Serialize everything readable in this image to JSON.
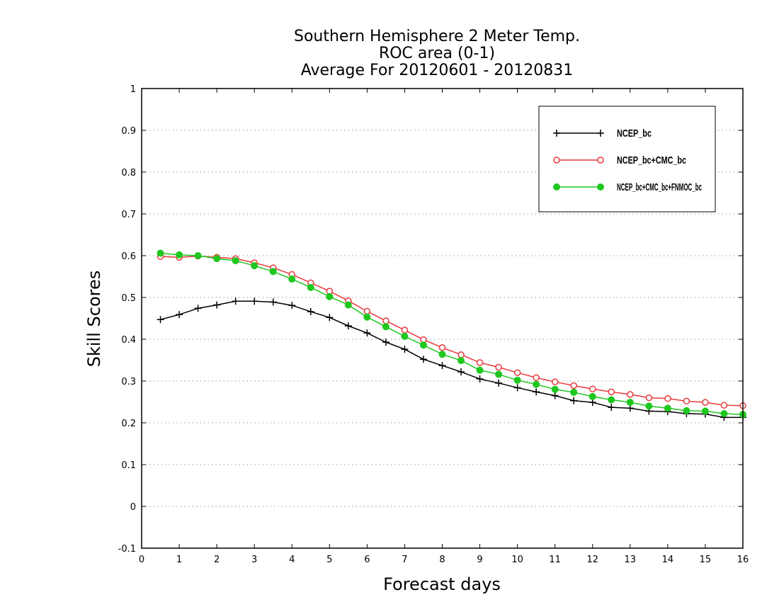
{
  "chart_data": {
    "type": "line",
    "title": [
      "Southern Hemisphere 2 Meter Temp.",
      "ROC area (0-1)",
      "Average For 20120601 - 20120831"
    ],
    "xlabel": "Forecast days",
    "ylabel": "Skill Scores",
    "xlim": [
      0,
      16
    ],
    "ylim": [
      -0.1,
      1
    ],
    "xticks": [
      "0",
      "1",
      "2",
      "3",
      "4",
      "5",
      "6",
      "7",
      "8",
      "9",
      "10",
      "11",
      "12",
      "13",
      "14",
      "15",
      "16"
    ],
    "yticks": [
      "-0.1",
      "0",
      "0.1",
      "0.2",
      "0.3",
      "0.4",
      "0.5",
      "0.6",
      "0.7",
      "0.8",
      "0.9",
      "1"
    ],
    "grid": "horizontal dotted",
    "legend_position": "top-right",
    "x": [
      0.5,
      1,
      1.5,
      2,
      2.5,
      3,
      3.5,
      4,
      4.5,
      5,
      5.5,
      6,
      6.5,
      7,
      7.5,
      8,
      8.5,
      9,
      9.5,
      10,
      10.5,
      11,
      11.5,
      12,
      12.5,
      13,
      13.5,
      14,
      14.5,
      15,
      15.5,
      16
    ],
    "series": [
      {
        "name": "NCEP_bc",
        "color": "#000000",
        "marker": "plus",
        "values": [
          0.447,
          0.459,
          0.474,
          0.482,
          0.491,
          0.491,
          0.489,
          0.481,
          0.466,
          0.452,
          0.432,
          0.415,
          0.393,
          0.376,
          0.352,
          0.337,
          0.322,
          0.305,
          0.295,
          0.284,
          0.274,
          0.265,
          0.253,
          0.249,
          0.237,
          0.235,
          0.228,
          0.227,
          0.222,
          0.221,
          0.213,
          0.213
        ]
      },
      {
        "name": "NCEP_bc+CMC_bc",
        "color": "#e8393c",
        "marker": "open-circle",
        "values": [
          0.598,
          0.596,
          0.599,
          0.596,
          0.593,
          0.583,
          0.571,
          0.555,
          0.535,
          0.515,
          0.492,
          0.467,
          0.444,
          0.422,
          0.399,
          0.38,
          0.363,
          0.344,
          0.333,
          0.32,
          0.308,
          0.298,
          0.289,
          0.281,
          0.274,
          0.268,
          0.26,
          0.258,
          0.252,
          0.249,
          0.242,
          0.241
        ]
      },
      {
        "name": "NCEP_bc+CMC_bc+FNMOC_bc",
        "color": "#1ec81e",
        "marker": "filled-circle",
        "values": [
          0.606,
          0.602,
          0.6,
          0.593,
          0.588,
          0.576,
          0.562,
          0.544,
          0.524,
          0.502,
          0.482,
          0.453,
          0.43,
          0.407,
          0.386,
          0.364,
          0.349,
          0.326,
          0.316,
          0.302,
          0.292,
          0.28,
          0.273,
          0.263,
          0.255,
          0.249,
          0.24,
          0.235,
          0.229,
          0.228,
          0.222,
          0.22
        ]
      }
    ]
  }
}
